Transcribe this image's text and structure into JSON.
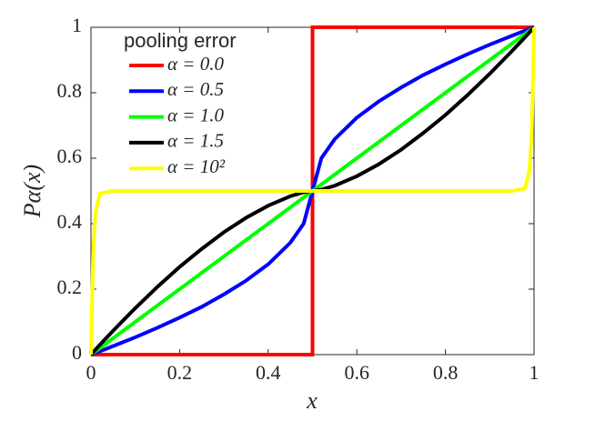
{
  "chart_data": {
    "type": "line",
    "xlabel": "x",
    "ylabel": "Pα(x)",
    "legend_title": "pooling error",
    "x": [
      0,
      0.005,
      0.01,
      0.02,
      0.05,
      0.1,
      0.15,
      0.2,
      0.25,
      0.3,
      0.35,
      0.4,
      0.45,
      0.48,
      0.5,
      0.52,
      0.55,
      0.6,
      0.65,
      0.7,
      0.75,
      0.8,
      0.85,
      0.9,
      0.95,
      0.98,
      0.99,
      0.995,
      1
    ],
    "xlim": [
      0,
      1
    ],
    "ylim": [
      0,
      1
    ],
    "xticks": [
      0,
      0.2,
      0.4,
      0.6,
      0.8,
      1
    ],
    "yticks": [
      0,
      0.2,
      0.4,
      0.6,
      0.8,
      1
    ],
    "legend": "upper left",
    "series": [
      {
        "name": "α = 0.0",
        "color": "#ff0000",
        "x": [
          0,
          0.5,
          0.5,
          1
        ],
        "values": [
          0,
          0,
          1,
          1
        ]
      },
      {
        "name": "α = 0.5",
        "color": "#0000ff",
        "values": [
          0,
          0.0025,
          0.005,
          0.01,
          0.026,
          0.053,
          0.082,
          0.113,
          0.146,
          0.184,
          0.226,
          0.276,
          0.342,
          0.4,
          0.5,
          0.6,
          0.658,
          0.724,
          0.774,
          0.816,
          0.854,
          0.887,
          0.918,
          0.947,
          0.974,
          0.99,
          0.995,
          0.9975,
          1
        ]
      },
      {
        "name": "α = 1.0",
        "color": "#00ff00",
        "values": [
          0,
          0.005,
          0.01,
          0.02,
          0.05,
          0.1,
          0.15,
          0.2,
          0.25,
          0.3,
          0.35,
          0.4,
          0.45,
          0.48,
          0.5,
          0.52,
          0.55,
          0.6,
          0.65,
          0.7,
          0.75,
          0.8,
          0.85,
          0.9,
          0.95,
          0.98,
          0.99,
          0.995,
          1
        ]
      },
      {
        "name": "α = 1.5",
        "color": "#000000",
        "values": [
          0,
          0.0075,
          0.015,
          0.03,
          0.073,
          0.142,
          0.207,
          0.268,
          0.323,
          0.374,
          0.418,
          0.455,
          0.484,
          0.496,
          0.5,
          0.504,
          0.516,
          0.545,
          0.582,
          0.626,
          0.677,
          0.732,
          0.793,
          0.858,
          0.927,
          0.97,
          0.985,
          0.9925,
          1
        ]
      },
      {
        "name": "α = 10²",
        "color": "#ffff00",
        "values": [
          0,
          0.317,
          0.434,
          0.492,
          0.5,
          0.5,
          0.5,
          0.5,
          0.5,
          0.5,
          0.5,
          0.5,
          0.5,
          0.5,
          0.5,
          0.5,
          0.5,
          0.5,
          0.5,
          0.5,
          0.5,
          0.5,
          0.5,
          0.5,
          0.5,
          0.508,
          0.567,
          0.683,
          1
        ]
      }
    ]
  }
}
